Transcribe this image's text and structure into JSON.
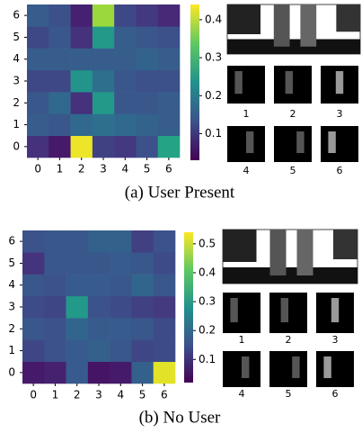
{
  "chart_data": [
    {
      "type": "heatmap",
      "colormap": "viridis",
      "caption": "(a) User Present",
      "xticks": [
        0,
        1,
        2,
        3,
        4,
        5,
        6
      ],
      "yticks": [
        0,
        1,
        2,
        3,
        4,
        5,
        6
      ],
      "values": [
        [
          0.09,
          0.06,
          0.43,
          0.11,
          0.1,
          0.13,
          0.27
        ],
        [
          0.15,
          0.14,
          0.17,
          0.18,
          0.17,
          0.16,
          0.15
        ],
        [
          0.14,
          0.17,
          0.09,
          0.25,
          0.14,
          0.14,
          0.15
        ],
        [
          0.12,
          0.12,
          0.24,
          0.18,
          0.14,
          0.13,
          0.13
        ],
        [
          0.15,
          0.15,
          0.15,
          0.15,
          0.15,
          0.16,
          0.15
        ],
        [
          0.12,
          0.14,
          0.09,
          0.25,
          0.15,
          0.14,
          0.13
        ],
        [
          0.15,
          0.13,
          0.07,
          0.38,
          0.12,
          0.1,
          0.08
        ]
      ],
      "zlim": [
        0.03,
        0.44
      ],
      "colorbar_ticks": [
        0.1,
        0.2,
        0.3,
        0.4
      ],
      "thumbnail_labels": [
        "1",
        "2",
        "3",
        "4",
        "5",
        "6"
      ]
    },
    {
      "type": "heatmap",
      "colormap": "viridis",
      "caption": "(b) No User",
      "xticks": [
        0,
        1,
        2,
        3,
        4,
        5,
        6
      ],
      "yticks": [
        0,
        1,
        2,
        3,
        4,
        5,
        6
      ],
      "values": [
        [
          0.06,
          0.07,
          0.17,
          0.05,
          0.06,
          0.18,
          0.52
        ],
        [
          0.13,
          0.15,
          0.17,
          0.18,
          0.16,
          0.13,
          0.14
        ],
        [
          0.16,
          0.15,
          0.19,
          0.17,
          0.17,
          0.16,
          0.14
        ],
        [
          0.14,
          0.13,
          0.3,
          0.15,
          0.14,
          0.12,
          0.11
        ],
        [
          0.16,
          0.15,
          0.17,
          0.17,
          0.16,
          0.19,
          0.16
        ],
        [
          0.1,
          0.16,
          0.16,
          0.16,
          0.17,
          0.16,
          0.14
        ],
        [
          0.15,
          0.16,
          0.16,
          0.18,
          0.18,
          0.12,
          0.15
        ]
      ],
      "zlim": [
        0.02,
        0.54
      ],
      "colorbar_ticks": [
        0.1,
        0.2,
        0.3,
        0.4,
        0.5
      ],
      "thumbnail_labels": [
        "1",
        "2",
        "3",
        "4",
        "5",
        "6"
      ]
    }
  ]
}
